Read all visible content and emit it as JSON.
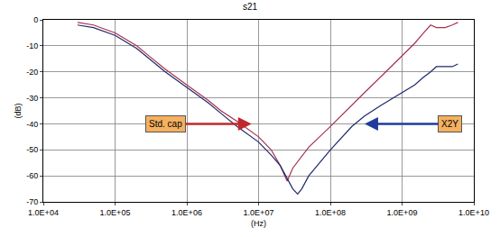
{
  "chart_data": {
    "type": "line",
    "title": "s21",
    "x_label": "(Hz)",
    "y_label": "(dB)",
    "log": "x",
    "grid": true,
    "xlim": [
      10000,
      10000000000
    ],
    "xticks": [
      {
        "value": 10000,
        "label": "1.0E+04"
      },
      {
        "value": 100000,
        "label": "1.0E+05"
      },
      {
        "value": 1000000,
        "label": "1.0E+06"
      },
      {
        "value": 10000000,
        "label": "1.0E+07"
      },
      {
        "value": 100000000,
        "label": "1.0E+08"
      },
      {
        "value": 1000000000,
        "label": "1.0E+09"
      },
      {
        "value": 10000000000,
        "label": "1.0E+10"
      }
    ],
    "ylim": [
      -70,
      0
    ],
    "yticks": [
      -70,
      -60,
      -50,
      -40,
      -30,
      -20,
      -10,
      0
    ],
    "series": [
      {
        "color": "#a8324e",
        "x": [
          30000,
          50000,
          100000,
          200000,
          300000,
          500000,
          1000000,
          2000000,
          3000000,
          5000000,
          10000000,
          15000000,
          20000000,
          25000000,
          30000000,
          50000000,
          100000000,
          200000000,
          300000000,
          500000000,
          1000000000,
          1500000000,
          2000000000,
          2500000000,
          3000000000,
          4000000000,
          5000000000,
          6000000000
        ],
        "values": [
          -1,
          -2,
          -5,
          -10,
          -14,
          -19,
          -25,
          -31,
          -35,
          -39,
          -45,
          -50,
          -56,
          -62,
          -57,
          -49,
          -41,
          -33,
          -28,
          -22,
          -14,
          -9,
          -5,
          -2,
          -3,
          -3,
          -2,
          -1
        ]
      },
      {
        "color": "#1f2a6b",
        "x": [
          30000,
          50000,
          100000,
          200000,
          300000,
          500000,
          1000000,
          2000000,
          3000000,
          5000000,
          10000000,
          15000000,
          20000000,
          25000000,
          30000000,
          35000000,
          40000000,
          50000000,
          100000000,
          200000000,
          300000000,
          500000000,
          1000000000,
          1500000000,
          2000000000,
          2500000000,
          3000000000,
          4000000000,
          5000000000,
          6000000000
        ],
        "values": [
          -2,
          -3,
          -6,
          -11,
          -15,
          -20,
          -26,
          -32,
          -36,
          -41,
          -47,
          -52,
          -56,
          -61,
          -65,
          -67,
          -65,
          -60,
          -50,
          -41,
          -37,
          -33,
          -28,
          -25,
          -22,
          -20,
          -18,
          -18,
          -18,
          -17
        ]
      }
    ],
    "annotations": [
      {
        "text": "Std. cap",
        "x": 8000000,
        "y": -40,
        "color": "#c0282d"
      },
      {
        "text": "X2Y",
        "x": 300000000,
        "y": -40,
        "color": "#1f3c9c"
      }
    ]
  }
}
